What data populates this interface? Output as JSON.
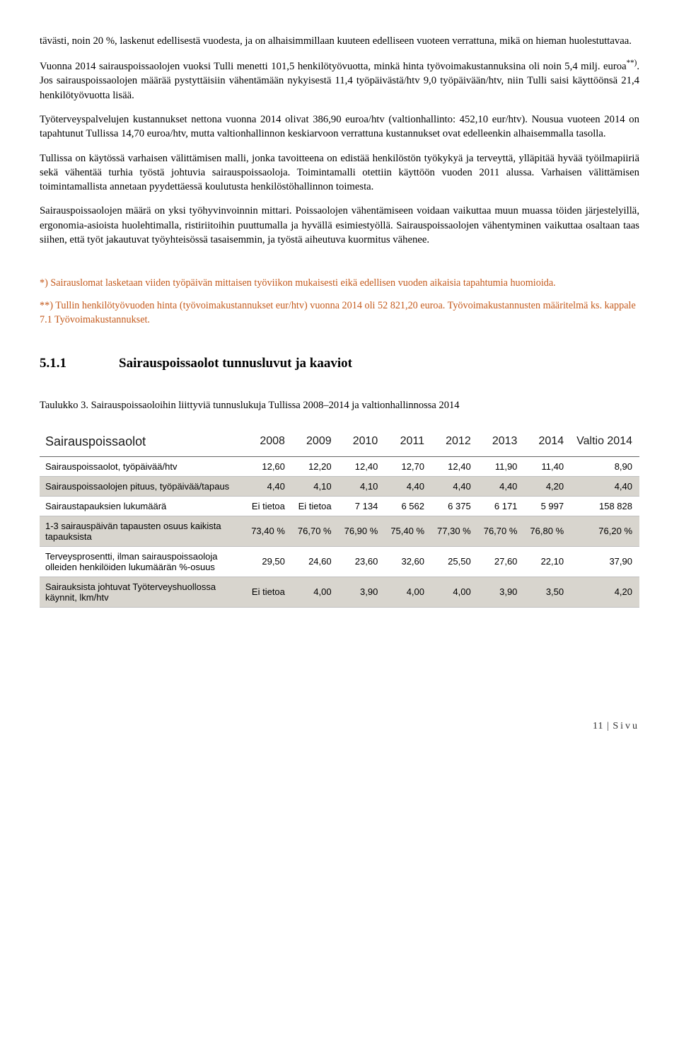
{
  "paragraphs": {
    "p1": "tävästi, noin 20 %, laskenut edellisestä vuodesta, ja on alhaisimmillaan kuuteen edelliseen vuoteen verrattuna, mikä on hieman huolestuttavaa.",
    "p2_a": "Vuonna 2014 sairauspoissaolojen vuoksi Tulli menetti 101,5 henkilötyövuotta, minkä hinta työvoimakustannuksina oli noin 5,4 milj. euroa",
    "p2_sup": "**)",
    "p2_b": ". Jos sairauspoissaolojen määrää pystyttäisiin vähentämään nykyisestä 11,4 työpäivästä/htv 9,0 työpäivään/htv, niin Tulli saisi käyttöönsä 21,4 henkilötyövuotta lisää.",
    "p3": "Työterveyspalvelujen kustannukset nettona vuonna 2014 olivat 386,90 euroa/htv (valtionhallinto: 452,10 eur/htv). Nousua vuoteen 2014 on tapahtunut Tullissa 14,70 euroa/htv, mutta valtionhallinnon keskiarvoon verrattuna kustannukset ovat edelleenkin alhaisemmalla tasolla.",
    "p4": "Tullissa on käytössä varhaisen välittämisen malli, jonka tavoitteena on edistää henkilöstön työkykyä ja terveyttä, ylläpitää hyvää työilmapiiriä sekä vähentää turhia työstä johtuvia sairauspoissaoloja. Toimintamalli otettiin käyttöön vuoden 2011 alussa. Varhaisen välittämisen toimintamallista annetaan pyydettäessä koulutusta henkilöstöhallinnon toimesta.",
    "p5": "Sairauspoissaolojen määrä on yksi työhyvinvoinnin mittari. Poissaolojen vähentämiseen voidaan vaikuttaa muun muassa töiden järjestelyillä, ergonomia-asioista huolehtimalla, ristiriitoihin puuttumalla ja hyvällä esimiestyöllä. Sairauspoissaolojen vähentyminen vaikuttaa osaltaan taas siihen, että työt jakautuvat työyhteisössä tasaisemmin, ja työstä aiheutuva kuormitus vähenee."
  },
  "footnotes": {
    "f1": "*) Sairauslomat lasketaan viiden työpäivän mittaisen työviikon mukaisesti eikä edellisen vuoden aikaisia tapahtumia huomioida.",
    "f2": "**) Tullin henkilötyövuoden hinta (työvoimakustannukset eur/htv) vuonna 2014 oli 52 821,20 euroa. Työvoimakustannusten määritelmä ks. kappale 7.1 Työvoimakustannukset."
  },
  "heading": {
    "number": "5.1.1",
    "title": "Sairauspoissaolot tunnusluvut ja kaaviot"
  },
  "table": {
    "caption": "Taulukko 3. Sairauspoissaoloihin liittyviä tunnuslukuja Tullissa 2008–2014 ja valtionhallinnossa 2014",
    "title": "Sairauspoissaolot",
    "columns": [
      "2008",
      "2009",
      "2010",
      "2011",
      "2012",
      "2013",
      "2014",
      "Valtio 2014"
    ],
    "rows": [
      {
        "shaded": false,
        "label": "Sairauspoissaolot, työpäivää/htv",
        "cells": [
          "12,60",
          "12,20",
          "12,40",
          "12,70",
          "12,40",
          "11,90",
          "11,40",
          "8,90"
        ]
      },
      {
        "shaded": true,
        "label": "Sairauspoissaolojen pituus, työpäivää/tapaus",
        "cells": [
          "4,40",
          "4,10",
          "4,10",
          "4,40",
          "4,40",
          "4,40",
          "4,20",
          "4,40"
        ]
      },
      {
        "shaded": false,
        "label": "Sairaustapauksien lukumäärä",
        "cells": [
          "Ei tietoa",
          "Ei tietoa",
          "7 134",
          "6 562",
          "6 375",
          "6 171",
          "5 997",
          "158 828"
        ]
      },
      {
        "shaded": true,
        "label": "1-3 sairauspäivän tapausten osuus kaikista tapauksista",
        "cells": [
          "73,40 %",
          "76,70 %",
          "76,90 %",
          "75,40 %",
          "77,30 %",
          "76,70 %",
          "76,80 %",
          "76,20 %"
        ]
      },
      {
        "shaded": false,
        "label": "Terveysprosentti, ilman sairauspoissaoloja olleiden henkilöiden lukumäärän %-osuus",
        "cells": [
          "29,50",
          "24,60",
          "23,60",
          "32,60",
          "25,50",
          "27,60",
          "22,10",
          "37,90"
        ]
      },
      {
        "shaded": true,
        "label": "Sairauksista johtuvat Työterveyshuollossa käynnit, lkm/htv",
        "cells": [
          "Ei tietoa",
          "4,00",
          "3,90",
          "4,00",
          "4,00",
          "3,90",
          "3,50",
          "4,20"
        ]
      }
    ],
    "header_bg": "#ffffff",
    "shaded_bg": "#d8d5ce",
    "border_color": "#bfbfbf",
    "font_family": "Segoe UI, Arial, sans-serif",
    "font_size_pt": 10
  },
  "footer": {
    "page": "11",
    "label": "Sivu"
  },
  "colors": {
    "text": "#000000",
    "footnote": "#c45a1c",
    "background": "#ffffff"
  }
}
